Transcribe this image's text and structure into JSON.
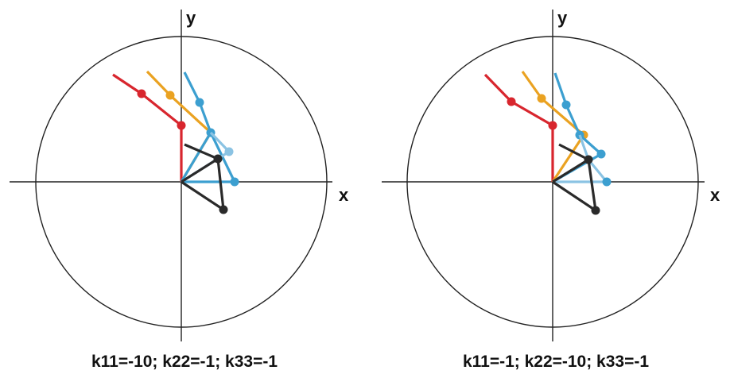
{
  "colors": {
    "red": "#d8262e",
    "orange": "#eaa221",
    "blue": "#3c9fd0",
    "light_blue": "#8bc3e3",
    "black": "#2a2a2a",
    "axis": "#222222"
  },
  "panels": [
    {
      "x_label": "x",
      "y_label": "y",
      "caption": "k11=-10; k22=-1; k33=-1"
    },
    {
      "x_label": "x",
      "y_label": "y",
      "caption": "k11=-1; k22=-10; k33=-1"
    }
  ]
}
